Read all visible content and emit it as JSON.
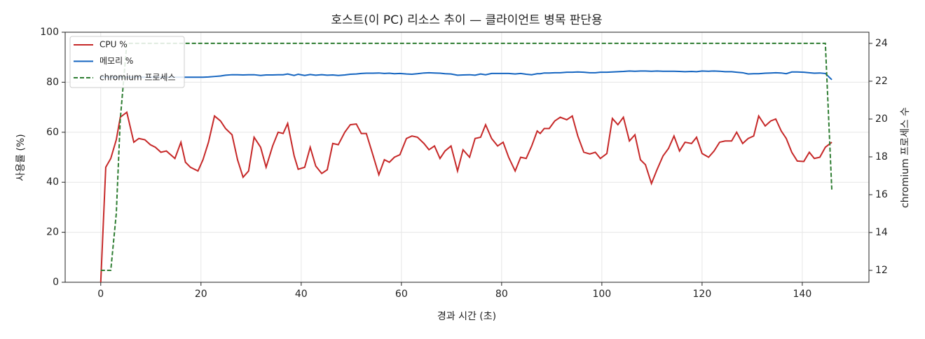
{
  "chart_data": {
    "type": "line",
    "title": "호스트(이 PC) 리소스 추이 — 클라이언트 병목 판단용",
    "x_label": "경과 시간 (초)",
    "y_label": "사용률 (%)",
    "y2_label": "chromium 프로세스 수",
    "x": [
      0,
      1.0,
      2.0,
      3.1,
      3.9,
      5.2,
      6.6,
      7.6,
      8.8,
      9.9,
      10.9,
      12.0,
      13.1,
      14.8,
      16.0,
      16.9,
      17.9,
      19.4,
      20.4,
      21.5,
      22.7,
      23.9,
      24.9,
      26.2,
      27.3,
      28.4,
      29.5,
      30.6,
      31.9,
      33.0,
      34.3,
      35.4,
      36.4,
      37.3,
      38.6,
      39.4,
      40.7,
      41.8,
      42.9,
      44.1,
      45.2,
      46.3,
      47.4,
      48.7,
      49.8,
      51.0,
      52.0,
      53.0,
      54.3,
      55.5,
      56.6,
      57.6,
      58.6,
      59.7,
      61.0,
      62.1,
      63.2,
      64.5,
      65.5,
      66.6,
      67.7,
      68.7,
      69.9,
      71.2,
      72.3,
      73.6,
      74.7,
      75.8,
      76.8,
      78.0,
      79.2,
      80.3,
      81.4,
      82.7,
      83.8,
      84.9,
      86.0,
      87.1,
      87.7,
      88.5,
      89.5,
      90.6,
      91.7,
      93.0,
      94.1,
      95.2,
      96.4,
      97.6,
      98.7,
      99.7,
      101.0,
      102.1,
      103.2,
      104.3,
      105.5,
      106.6,
      107.7,
      108.7,
      109.9,
      111.0,
      112.2,
      113.3,
      114.4,
      115.5,
      116.6,
      117.9,
      118.9,
      120.0,
      121.3,
      122.4,
      123.5,
      124.6,
      125.9,
      126.9,
      128.1,
      129.2,
      130.3,
      131.3,
      132.6,
      133.7,
      134.7,
      135.8,
      136.8,
      137.9,
      139.0,
      140.3,
      141.4,
      142.4,
      143.5,
      144.6,
      145.9
    ],
    "series": [
      {
        "name": "CPU %",
        "color": "#c62828",
        "linestyle": "solid",
        "values": [
          0,
          46,
          49.5,
          57,
          66,
          68,
          56,
          57.5,
          57,
          55,
          54,
          52,
          52.5,
          49.5,
          56,
          48,
          46,
          44.5,
          49,
          56,
          66.5,
          64.5,
          61.5,
          59,
          49,
          42,
          44.5,
          58,
          54,
          46,
          54.5,
          60,
          59.5,
          63.5,
          50.5,
          45.2,
          46,
          54,
          46.5,
          43.5,
          45,
          55.5,
          55,
          60,
          63,
          63.3,
          59.5,
          59.5,
          51,
          43,
          49,
          48,
          50,
          51,
          57.5,
          58.5,
          58,
          55.5,
          53,
          54.5,
          49.5,
          52.5,
          54.5,
          44.5,
          53,
          50,
          57.5,
          58,
          63,
          57.5,
          54.5,
          56,
          50,
          44.5,
          50,
          49.5,
          54.5,
          60.5,
          59.5,
          61.5,
          61.5,
          64.5,
          66,
          65,
          66.5,
          58.5,
          52,
          51.3,
          52,
          49.5,
          51.5,
          65.5,
          63,
          66,
          56.5,
          59,
          49,
          47,
          39.5,
          45,
          50.5,
          53.5,
          58.5,
          52.5,
          56,
          55.5,
          58,
          51.5,
          50,
          52.5,
          56,
          56.5,
          56.5,
          60,
          55.5,
          57.5,
          58.5,
          66.5,
          62.5,
          64.5,
          65.3,
          60.5,
          57.5,
          52,
          48.5,
          48.3,
          52,
          49.5,
          50,
          54,
          56
        ]
      },
      {
        "name": "메모리 %",
        "color": "#1565c0",
        "linestyle": "solid",
        "values": [
          82,
          82,
          82,
          82,
          82,
          82,
          82,
          82,
          82,
          82,
          82,
          82,
          82,
          82,
          82,
          82,
          82,
          82,
          82,
          82.1,
          82.3,
          82.5,
          82.8,
          83,
          83,
          82.9,
          83,
          83,
          82.7,
          82.9,
          82.9,
          83,
          83,
          83.3,
          82.7,
          83.2,
          82.7,
          83.1,
          82.8,
          83,
          82.8,
          82.9,
          82.7,
          82.9,
          83.2,
          83.3,
          83.5,
          83.6,
          83.6,
          83.7,
          83.5,
          83.6,
          83.4,
          83.5,
          83.3,
          83.2,
          83.4,
          83.7,
          83.8,
          83.7,
          83.6,
          83.4,
          83.3,
          82.8,
          82.9,
          83,
          82.8,
          83.3,
          83,
          83.5,
          83.5,
          83.5,
          83.5,
          83.3,
          83.5,
          83.2,
          83,
          83.4,
          83.4,
          83.7,
          83.7,
          83.8,
          83.8,
          84,
          84,
          84.1,
          84,
          83.8,
          83.8,
          84,
          84,
          84.1,
          84.2,
          84.3,
          84.5,
          84.4,
          84.5,
          84.5,
          84.4,
          84.5,
          84.4,
          84.4,
          84.4,
          84.3,
          84.2,
          84.3,
          84.2,
          84.5,
          84.4,
          84.5,
          84.4,
          84.2,
          84.2,
          84,
          83.8,
          83.3,
          83.4,
          83.4,
          83.6,
          83.7,
          83.8,
          83.7,
          83.4,
          84.1,
          84.1,
          84,
          83.8,
          83.6,
          83.7,
          83.5,
          81
        ]
      },
      {
        "name": "chromium 프로세스",
        "color": "#2e7d32",
        "linestyle": "dashed",
        "axis": "y2",
        "values": [
          12,
          12,
          12,
          15,
          20,
          24,
          24,
          24,
          24,
          24,
          24,
          24,
          24,
          24,
          24,
          24,
          24,
          24,
          24,
          24,
          24,
          24,
          24,
          24,
          24,
          24,
          24,
          24,
          24,
          24,
          24,
          24,
          24,
          24,
          24,
          24,
          24,
          24,
          24,
          24,
          24,
          24,
          24,
          24,
          24,
          24,
          24,
          24,
          24,
          24,
          24,
          24,
          24,
          24,
          24,
          24,
          24,
          24,
          24,
          24,
          24,
          24,
          24,
          24,
          24,
          24,
          24,
          24,
          24,
          24,
          24,
          24,
          24,
          24,
          24,
          24,
          24,
          24,
          24,
          24,
          24,
          24,
          24,
          24,
          24,
          24,
          24,
          24,
          24,
          24,
          24,
          24,
          24,
          24,
          24,
          24,
          24,
          24,
          24,
          24,
          24,
          24,
          24,
          24,
          24,
          24,
          24,
          24,
          24,
          24,
          24,
          24,
          24,
          24,
          24,
          24,
          24,
          24,
          24,
          24,
          24,
          24,
          24,
          24,
          24,
          24,
          24,
          24,
          24,
          24,
          16.2
        ]
      }
    ],
    "xlim": [
      -7.1,
      153.3
    ],
    "xticks": [
      0,
      20,
      40,
      60,
      80,
      100,
      120,
      140
    ],
    "ylim": [
      0,
      100
    ],
    "yticks": [
      0,
      20,
      40,
      60,
      80,
      100
    ],
    "y2lim": [
      11.37,
      24.59
    ],
    "y2ticks": [
      12,
      14,
      16,
      18,
      20,
      22,
      24
    ],
    "grid": true,
    "legend": "upper left"
  }
}
